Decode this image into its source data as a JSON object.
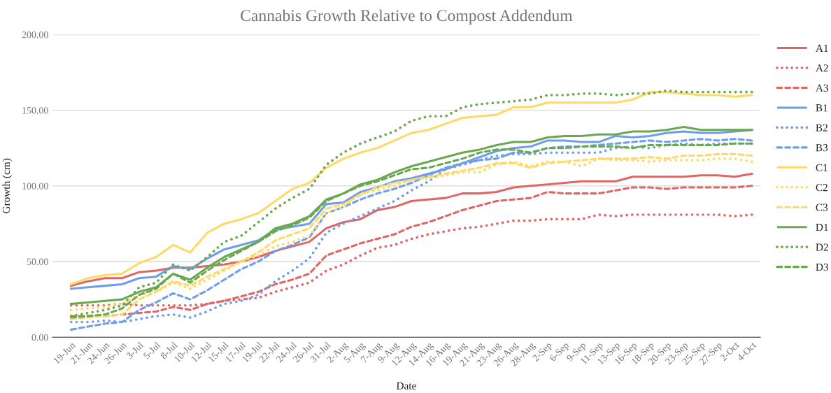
{
  "chart_data": {
    "type": "line",
    "title": "Cannabis Growth Relative to Compost Addendum",
    "xlabel": "Date",
    "ylabel": "Growth (cm)",
    "categories": [
      "19-Jun",
      "21-Jun",
      "24-Jun",
      "26-Jun",
      "3-Jul",
      "5-Jul",
      "8-Jul",
      "10-Jul",
      "12-Jul",
      "15-Jul",
      "17-Jul",
      "19-Jul",
      "22-Jul",
      "24-Jul",
      "26-Jul",
      "31-Jul",
      "2-Aug",
      "5-Aug",
      "7-Aug",
      "9-Aug",
      "12-Aug",
      "14-Aug",
      "16-Aug",
      "19-Aug",
      "21-Aug",
      "23-Aug",
      "26-Aug",
      "28-Aug",
      "2-Sep",
      "6-Sep",
      "9-Sep",
      "11-Sep",
      "13-Sep",
      "16-Sep",
      "18-Sep",
      "20-Sep",
      "23-Sep",
      "25-Sep",
      "27-Sep",
      "2-Oct",
      "4-Oct"
    ],
    "series": [
      {
        "name": "A1",
        "color": "#e06666",
        "line_style": "solid",
        "values": [
          34,
          37,
          39,
          39,
          43,
          44,
          46,
          46,
          47,
          48,
          50,
          53,
          57,
          60,
          63,
          72,
          76,
          78,
          84,
          86,
          90,
          91,
          92,
          95,
          95,
          96,
          99,
          100,
          101,
          102,
          103,
          103,
          103,
          106,
          106,
          106,
          106,
          107,
          107,
          106,
          108
        ]
      },
      {
        "name": "A2",
        "color": "#e06666",
        "line_style": "dotted",
        "values": [
          21,
          21,
          21,
          22,
          21,
          21,
          21,
          21,
          22,
          24,
          25,
          26,
          30,
          33,
          36,
          44,
          48,
          54,
          59,
          61,
          65,
          68,
          70,
          72,
          73,
          75,
          77,
          77,
          78,
          78,
          78,
          81,
          80,
          81,
          81,
          81,
          81,
          81,
          81,
          80,
          81
        ]
      },
      {
        "name": "A3",
        "color": "#e06666",
        "line_style": "dashed",
        "values": [
          14,
          14,
          14,
          15,
          16,
          17,
          20,
          18,
          22,
          24,
          27,
          30,
          35,
          38,
          42,
          54,
          58,
          62,
          65,
          68,
          73,
          76,
          80,
          84,
          87,
          90,
          91,
          92,
          96,
          95,
          95,
          95,
          97,
          99,
          99,
          98,
          99,
          99,
          99,
          99,
          100
        ]
      },
      {
        "name": "B1",
        "color": "#6d9eeb",
        "line_style": "solid",
        "values": [
          32,
          33,
          34,
          35,
          39,
          40,
          47,
          45,
          52,
          58,
          61,
          64,
          71,
          73,
          75,
          88,
          89,
          96,
          99,
          103,
          105,
          108,
          111,
          115,
          119,
          123,
          125,
          126,
          130,
          130,
          129,
          129,
          133,
          132,
          133,
          135,
          136,
          135,
          135,
          136,
          137
        ]
      },
      {
        "name": "B2",
        "color": "#6d9eeb",
        "line_style": "dotted",
        "values": [
          10,
          10,
          11,
          10,
          12,
          14,
          15,
          13,
          17,
          22,
          24,
          28,
          37,
          44,
          52,
          69,
          75,
          80,
          85,
          90,
          97,
          103,
          111,
          114,
          117,
          120,
          121,
          121,
          122,
          122,
          122,
          122,
          125,
          126,
          125,
          127,
          128,
          127,
          128,
          128,
          128
        ]
      },
      {
        "name": "B3",
        "color": "#6d9eeb",
        "line_style": "dashed",
        "values": [
          5,
          7,
          9,
          10,
          18,
          23,
          29,
          25,
          31,
          38,
          45,
          50,
          57,
          61,
          66,
          82,
          86,
          91,
          95,
          98,
          102,
          107,
          112,
          115,
          117,
          118,
          122,
          122,
          125,
          126,
          126,
          127,
          128,
          129,
          130,
          129,
          130,
          131,
          130,
          131,
          130
        ]
      },
      {
        "name": "C1",
        "color": "#ffd966",
        "line_style": "solid",
        "values": [
          35,
          39,
          41,
          42,
          49,
          53,
          61,
          56,
          69,
          75,
          78,
          82,
          90,
          98,
          102,
          112,
          118,
          122,
          125,
          130,
          135,
          137,
          141,
          145,
          146,
          147,
          152,
          152,
          155,
          155,
          155,
          155,
          155,
          157,
          162,
          162,
          161,
          160,
          160,
          159,
          160
        ]
      },
      {
        "name": "C2",
        "color": "#ffd966",
        "line_style": "dotted",
        "values": [
          18,
          19,
          20,
          22,
          28,
          30,
          36,
          32,
          38,
          44,
          50,
          54,
          60,
          63,
          67,
          82,
          86,
          95,
          97,
          100,
          104,
          105,
          107,
          109,
          109,
          114,
          116,
          113,
          116,
          116,
          113,
          118,
          117,
          117,
          116,
          117,
          117,
          117,
          118,
          118,
          116
        ]
      },
      {
        "name": "C3",
        "color": "#ffd966",
        "line_style": "dashed",
        "values": [
          12,
          13,
          14,
          15,
          25,
          30,
          37,
          34,
          40,
          45,
          50,
          56,
          64,
          68,
          72,
          85,
          88,
          94,
          99,
          102,
          104,
          106,
          108,
          110,
          112,
          115,
          115,
          112,
          115,
          116,
          117,
          118,
          118,
          118,
          119,
          118,
          120,
          120,
          121,
          121,
          120
        ]
      },
      {
        "name": "D1",
        "color": "#6aa84f",
        "line_style": "solid",
        "values": [
          22,
          23,
          24,
          25,
          30,
          33,
          42,
          38,
          46,
          53,
          58,
          63,
          72,
          75,
          80,
          91,
          95,
          101,
          104,
          109,
          113,
          116,
          119,
          122,
          124,
          127,
          129,
          129,
          132,
          133,
          133,
          134,
          134,
          136,
          136,
          137,
          139,
          137,
          137,
          137,
          137
        ]
      },
      {
        "name": "D2",
        "color": "#6aa84f",
        "line_style": "dotted",
        "values": [
          14,
          16,
          18,
          21,
          33,
          36,
          48,
          44,
          53,
          63,
          67,
          76,
          85,
          92,
          98,
          114,
          122,
          128,
          132,
          136,
          143,
          146,
          146,
          152,
          154,
          155,
          156,
          157,
          160,
          160,
          161,
          161,
          160,
          161,
          161,
          163,
          162,
          162,
          162,
          162,
          162
        ]
      },
      {
        "name": "D3",
        "color": "#6aa84f",
        "line_style": "dashed",
        "values": [
          13,
          14,
          15,
          19,
          28,
          32,
          42,
          36,
          44,
          51,
          57,
          63,
          70,
          74,
          79,
          90,
          95,
          100,
          103,
          107,
          111,
          112,
          115,
          118,
          122,
          124,
          124,
          122,
          125,
          125,
          126,
          126,
          126,
          125,
          127,
          127,
          127,
          127,
          127,
          128,
          128
        ]
      }
    ],
    "ylim": [
      0,
      200
    ],
    "yticks": [
      {
        "value": 0,
        "label": "0.00"
      },
      {
        "value": 50,
        "label": "50.00"
      },
      {
        "value": 100,
        "label": "100.00"
      },
      {
        "value": 150,
        "label": "150.00"
      },
      {
        "value": 200,
        "label": "200.00"
      }
    ],
    "grid": "y",
    "legend": "right"
  }
}
